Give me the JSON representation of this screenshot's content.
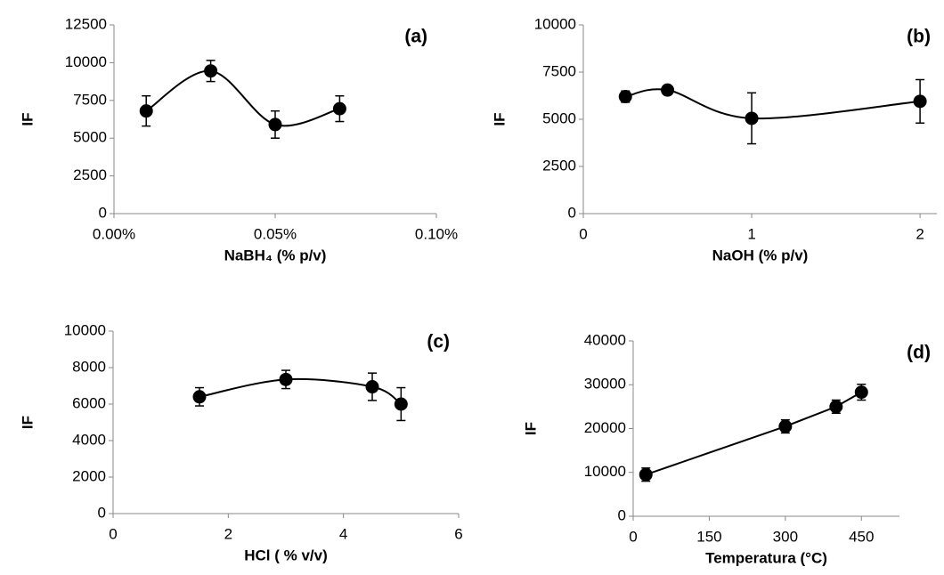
{
  "chart_data": [
    {
      "type": "scatter",
      "annotation": "(a)",
      "x_label": "NaBH₄ (% p/v)",
      "y_label": "IF",
      "x": [
        0.01,
        0.03,
        0.05,
        0.07
      ],
      "values": [
        6800,
        9450,
        5900,
        6950
      ],
      "errors": [
        1000,
        700,
        900,
        850
      ],
      "xlim": [
        0,
        0.1
      ],
      "xticks": [
        {
          "value": 0,
          "label": "0.00%"
        },
        {
          "value": 0.05,
          "label": "0.05%"
        },
        {
          "value": 0.1,
          "label": "0.10%"
        }
      ],
      "ylim": [
        0,
        12500
      ],
      "yticks": [
        0,
        2500,
        5000,
        7500,
        10000,
        12500
      ],
      "color": "#000000",
      "smooth": true
    },
    {
      "type": "scatter",
      "annotation": "(b)",
      "x_label": "NaOH (% p/v)",
      "y_label": "IF",
      "x": [
        0.25,
        0.5,
        1,
        2
      ],
      "values": [
        6200,
        6550,
        5050,
        5950
      ],
      "errors": [
        300,
        150,
        1350,
        1150
      ],
      "xlim": [
        0,
        2.1
      ],
      "xticks": [
        0,
        1,
        2
      ],
      "ylim": [
        0,
        10000
      ],
      "yticks": [
        0,
        2500,
        5000,
        7500,
        10000
      ],
      "color": "#000000",
      "smooth": true
    },
    {
      "type": "scatter",
      "annotation": "(c)",
      "x_label": "HCl ( % v/v)",
      "y_label": "IF",
      "x": [
        1.5,
        3,
        4.5,
        5
      ],
      "values": [
        6400,
        7350,
        6950,
        6000
      ],
      "errors": [
        500,
        500,
        750,
        900
      ],
      "xlim": [
        0,
        6
      ],
      "xticks": [
        0,
        2,
        4,
        6
      ],
      "ylim": [
        0,
        10000
      ],
      "yticks": [
        0,
        2000,
        4000,
        6000,
        8000,
        10000
      ],
      "color": "#000000",
      "smooth": true
    },
    {
      "type": "scatter",
      "annotation": "(d)",
      "x_label": "Temperatura (°C)",
      "y_label": "IF",
      "x": [
        25,
        300,
        400,
        450
      ],
      "values": [
        9500,
        20500,
        25000,
        28300
      ],
      "errors": [
        1500,
        1500,
        1500,
        1800
      ],
      "xlim": [
        0,
        525
      ],
      "xticks": [
        0,
        150,
        300,
        450
      ],
      "ylim": [
        0,
        40000
      ],
      "yticks": [
        0,
        10000,
        20000,
        30000,
        40000
      ],
      "color": "#000000",
      "smooth": false
    }
  ]
}
